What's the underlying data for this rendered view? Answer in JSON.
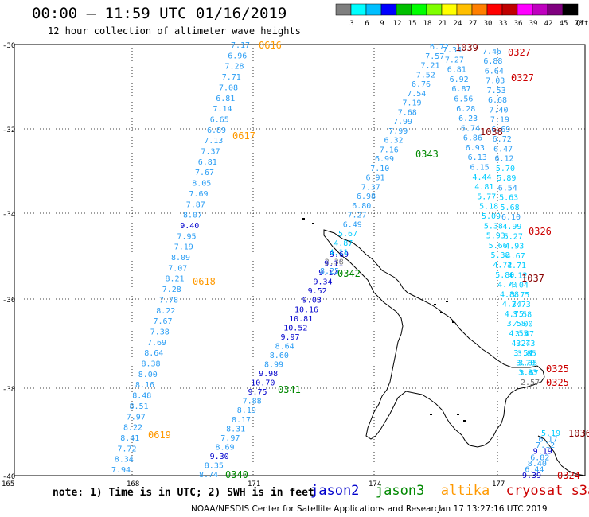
{
  "header": {
    "title": "00:00 – 11:59 UTC 01/16/2019",
    "subtitle": "12 hour collection of altimeter wave heights"
  },
  "colorbar": {
    "ticks": [
      "3",
      "6",
      "9",
      "12",
      "15",
      "18",
      "21",
      "24",
      "27",
      "30",
      "33",
      "36",
      "39",
      "42",
      "45",
      "70"
    ],
    "unit": "(ft)",
    "colors": [
      "#7f7f7f",
      "#00ffff",
      "#00bfff",
      "#0000ff",
      "#00bf00",
      "#00ff00",
      "#7fff00",
      "#ffff00",
      "#ffbf00",
      "#ff7f00",
      "#ff0000",
      "#bf0000",
      "#ff00ff",
      "#bf00bf",
      "#7f007f",
      "#000000"
    ]
  },
  "axes": {
    "lat_labels": [
      "-30",
      "-32",
      "-34",
      "-36",
      "-38",
      "-40"
    ],
    "lon_labels": [
      "165",
      "168",
      "171",
      "174",
      "177"
    ]
  },
  "footer": {
    "note": "note: 1) Time is in UTC; 2) SWH is in feet",
    "satellites": [
      {
        "name": "jason2",
        "color": "#0000cc"
      },
      {
        "name": "jason3",
        "color": "#008800"
      },
      {
        "name": "altika",
        "color": "#ff9900"
      },
      {
        "name": "cryosat",
        "color": "#cc0000"
      },
      {
        "name": "s3a",
        "color": "#cc0000"
      }
    ],
    "credit": "NOAA/NESDIS Center for Satellite Applications and Research",
    "timestamp": "Jan 17 13:27:16 UTC 2019"
  },
  "time_labels": [
    {
      "text": "0616",
      "color": "#ff9900"
    },
    {
      "text": "0617",
      "color": "#ff9900"
    },
    {
      "text": "0618",
      "color": "#ff9900"
    },
    {
      "text": "0619",
      "color": "#ff9900"
    },
    {
      "text": "0340",
      "color": "#008800"
    },
    {
      "text": "0341",
      "color": "#008800"
    },
    {
      "text": "0342",
      "color": "#008800"
    },
    {
      "text": "0343",
      "color": "#008800"
    },
    {
      "text": "1039",
      "color": "#880000"
    },
    {
      "text": "1038",
      "color": "#880000"
    },
    {
      "text": "1037",
      "color": "#880000"
    },
    {
      "text": "1036",
      "color": "#880000"
    },
    {
      "text": "0327",
      "color": "#cc0000"
    },
    {
      "text": "0327",
      "color": "#cc0000"
    },
    {
      "text": "0326",
      "color": "#cc0000"
    },
    {
      "text": "0325",
      "color": "#cc0000"
    },
    {
      "text": "0325",
      "color": "#cc0000"
    },
    {
      "text": "0324",
      "color": "#cc0000"
    }
  ],
  "tracks": {
    "altika": [
      "7.17",
      "6.96",
      "7.28",
      "7.71",
      "7.08",
      "6.81",
      "7.14",
      "6.65",
      "6.89",
      "7.13",
      "7.37",
      "6.81",
      "7.67",
      "8.05",
      "7.69",
      "7.87",
      "8.07",
      "9.40",
      "7.95",
      "7.19",
      "8.09",
      "7.07",
      "8.21",
      "7.28",
      "7.78",
      "8.22",
      "7.67",
      "7.38",
      "7.69",
      "8.64",
      "8.38",
      "8.00",
      "8.16",
      "8.48",
      "8.51",
      "7.97",
      "8.22",
      "8.41",
      "7.72",
      "8.34",
      "7.94"
    ],
    "jason3_south": [
      "8.74",
      "8.35",
      "9.30",
      "8.69",
      "7.97",
      "8.31",
      "8.17",
      "8.19",
      "7.88",
      "9.75",
      "10.70",
      "9.98",
      "8.99",
      "8.60",
      "8.64",
      "9.97",
      "10.52",
      "10.81",
      "10.16",
      "9.03",
      "9.52",
      "9.34",
      "9.17",
      "9.11",
      "9.69"
    ],
    "jason3_north": [
      "8.25",
      "2.38",
      "4.11",
      "4.87",
      "5.67",
      "6.49",
      "7.27",
      "6.80",
      "6.98",
      "7.37",
      "6.91",
      "7.10",
      "6.99",
      "7.16",
      "6.32",
      "7.99",
      "7.99",
      "7.68",
      "7.19",
      "7.54",
      "6.76",
      "7.52",
      "7.21",
      "7.57",
      "6.72"
    ],
    "cryosat_a": [
      "7.34",
      "7.27",
      "6.81",
      "6.92",
      "6.87",
      "6.56",
      "6.28",
      "6.23",
      "6.74",
      "6.86",
      "6.93",
      "6.13",
      "6.15",
      "4.44",
      "4.81",
      "5.77",
      "5.18",
      "5.09",
      "5.38",
      "5.93",
      "5.66",
      "5.38",
      "4.72",
      "5.80",
      "4.70",
      "4.88",
      "4.74",
      "4.75",
      "3.58",
      "4.55",
      "4.24",
      "3.54",
      "3.70",
      "3.83",
      "2.57"
    ],
    "s3a": [
      "7.46",
      "6.88",
      "6.64",
      "7.03",
      "7.53",
      "6.68",
      "7.40",
      "7.19",
      "6.69",
      "6.72",
      "6.47",
      "6.12",
      "5.70",
      "5.89",
      "6.54",
      "5.63",
      "5.68",
      "6.10",
      "4.99",
      "5.27",
      "4.93",
      "4.67",
      "4.71",
      "4.12",
      "4.04",
      "3.75",
      "3.73",
      "3.58",
      "4.00",
      "3.47",
      "3.73",
      "3.85",
      "3.65",
      "3.67",
      "2.57"
    ],
    "cryosat_b": [
      "5.19",
      "6.17",
      "7.12",
      "9.19",
      "6.82",
      "8.40",
      "6.44",
      "9.39"
    ]
  }
}
